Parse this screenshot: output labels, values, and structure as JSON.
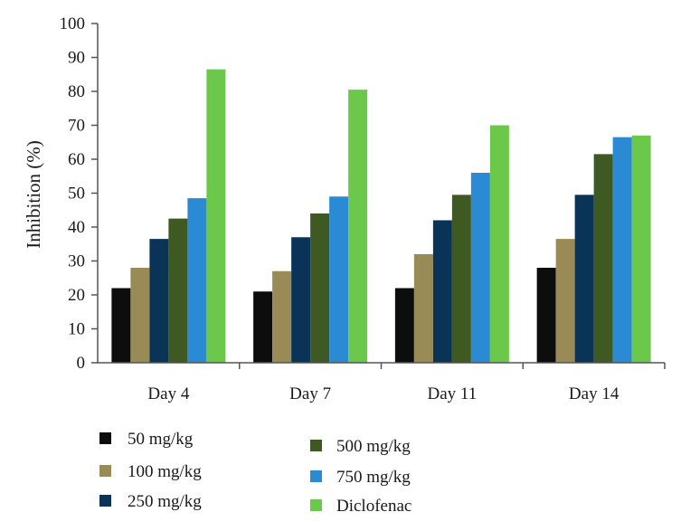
{
  "chart_data": {
    "type": "bar",
    "title": "",
    "xlabel": "",
    "ylabel": "Inhibition (%)",
    "ylim": [
      0,
      100
    ],
    "yticks": [
      "0",
      "10",
      "20",
      "30",
      "40",
      "50",
      "60",
      "70",
      "80",
      "90",
      "100"
    ],
    "categories": [
      "Day 4",
      "Day 7",
      "Day 11",
      "Day 14"
    ],
    "series": [
      {
        "name": "50 mg/kg",
        "color": "#0d0d0d",
        "values": [
          22,
          21,
          22,
          28
        ]
      },
      {
        "name": "100 mg/kg",
        "color": "#9a8a55",
        "values": [
          28,
          27,
          32,
          36.5
        ]
      },
      {
        "name": "250 mg/kg",
        "color": "#0a3358",
        "values": [
          36.5,
          37,
          42,
          49.5
        ]
      },
      {
        "name": "500 mg/kg",
        "color": "#3e5a22",
        "values": [
          42.5,
          44,
          49.5,
          61.5
        ]
      },
      {
        "name": "750 mg/kg",
        "color": "#2a8ad4",
        "values": [
          48.5,
          49,
          56,
          66.5
        ]
      },
      {
        "name": "Diclofenac",
        "color": "#6cc84a",
        "values": [
          86.5,
          80.5,
          70,
          67
        ]
      }
    ],
    "legend_position": "bottom",
    "grid": false
  }
}
